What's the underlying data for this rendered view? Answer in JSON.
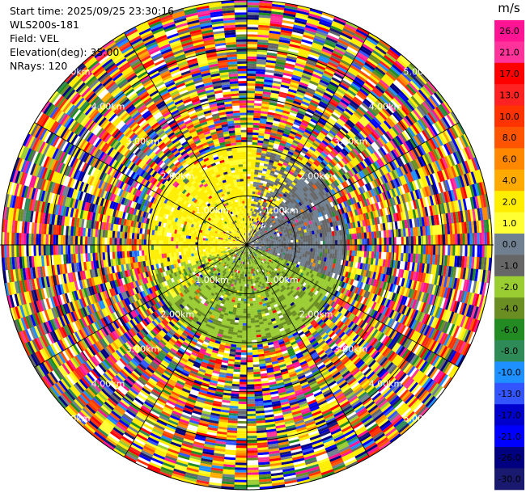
{
  "header": {
    "start_time": "Start time: 2025/09/25 23:30:16",
    "instrument": "WLS200s-181",
    "field": "Field: VEL",
    "elevation": "Elevation(deg): 35.00",
    "nrays": "NRays: 120"
  },
  "chart_data": {
    "type": "ppi",
    "field": "VEL",
    "units": "m/s",
    "n_rays": 120,
    "range_rings_km": [
      1.0,
      2.0,
      3.0,
      4.0,
      5.0
    ],
    "range_labels": [
      "1.00km",
      "2.00km",
      "3.00km",
      "4.00km",
      "5.00km"
    ],
    "max_range_km": 5.0,
    "colorbar": {
      "unit_label": "m/s",
      "ticks": [
        "26.0",
        "21.0",
        "17.0",
        "13.0",
        "10.0",
        "8.0",
        "6.0",
        "4.0",
        "2.0",
        "1.0",
        "0.0",
        "-1.0",
        "-2.0",
        "-4.0",
        "-6.0",
        "-8.0",
        "-10.0",
        "-13.0",
        "-17.0",
        "-21.0",
        "-26.0",
        "-30.0"
      ],
      "colors": [
        "#ff1493",
        "#ff3399",
        "#ff0000",
        "#ff2222",
        "#ff3300",
        "#ff5500",
        "#ff8800",
        "#ffaa00",
        "#ffee00",
        "#ffff33",
        "#708090",
        "#666666",
        "#9acd32",
        "#6b8e23",
        "#228b22",
        "#2e8b57",
        "#1e90ff",
        "#3355ff",
        "#0000cd",
        "#0000ff",
        "#000080",
        "#191970"
      ]
    },
    "structure": {
      "near_range_km": 2.05,
      "near_pattern": "yellow (positive) toward NW/N, green (negative) toward S/SE, grey (~0) toward NE",
      "far_pattern": "noisy all-colour range gates beyond ~2 km"
    }
  }
}
